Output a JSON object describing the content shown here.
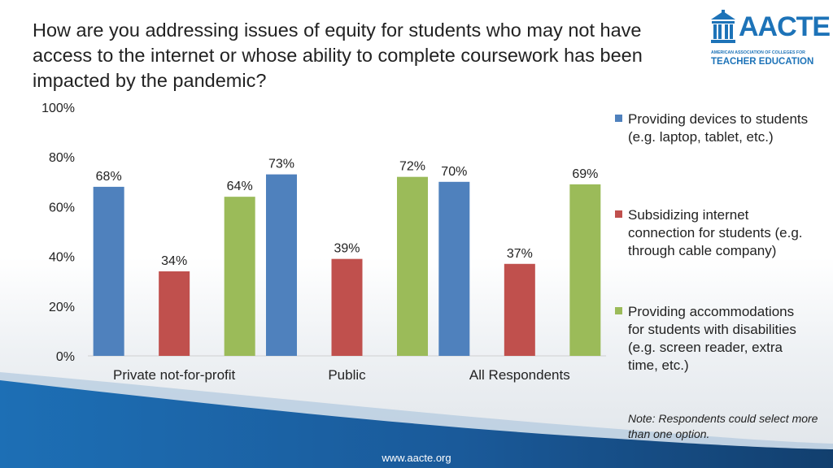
{
  "title": "How are you addressing issues of equity for students who may not have access to the internet or whose ability to complete coursework has been impacted by the pandemic?",
  "logo": {
    "main": "AACTE",
    "sub": "AMERICAN ASSOCIATION OF COLLEGES FOR",
    "sub2": "TEACHER EDUCATION",
    "icon": "schoolhouse-icon",
    "color": "#1d73b8"
  },
  "note": "Note:  Respondents could select more than one option.",
  "footer": {
    "url": "www.aacte.org"
  },
  "chart_data": {
    "type": "bar",
    "categories": [
      "Private not-for-profit",
      "Public",
      "All Respondents"
    ],
    "series": [
      {
        "name": "Providing devices to students (e.g. laptop, tablet, etc.)",
        "values": [
          68,
          73,
          70
        ],
        "labels": [
          "68%",
          "73%",
          "70%"
        ],
        "color": "#4f81bd"
      },
      {
        "name": "Subsidizing internet connection for students (e.g. through cable company)",
        "values": [
          34,
          39,
          37
        ],
        "labels": [
          "34%",
          "39%",
          "37%"
        ],
        "color": "#c0504d"
      },
      {
        "name": "Providing accommodations for students with disabilities (e.g. screen reader, extra time, etc.)",
        "values": [
          64,
          72,
          69
        ],
        "labels": [
          "64%",
          "72%",
          "69%"
        ],
        "color": "#9bbb59"
      }
    ],
    "ylim": [
      0,
      100
    ],
    "yticks": [
      0,
      20,
      40,
      60,
      80,
      100
    ],
    "ytick_labels": [
      "0%",
      "20%",
      "40%",
      "60%",
      "80%",
      "100%"
    ],
    "grid": false,
    "legend": "right"
  }
}
